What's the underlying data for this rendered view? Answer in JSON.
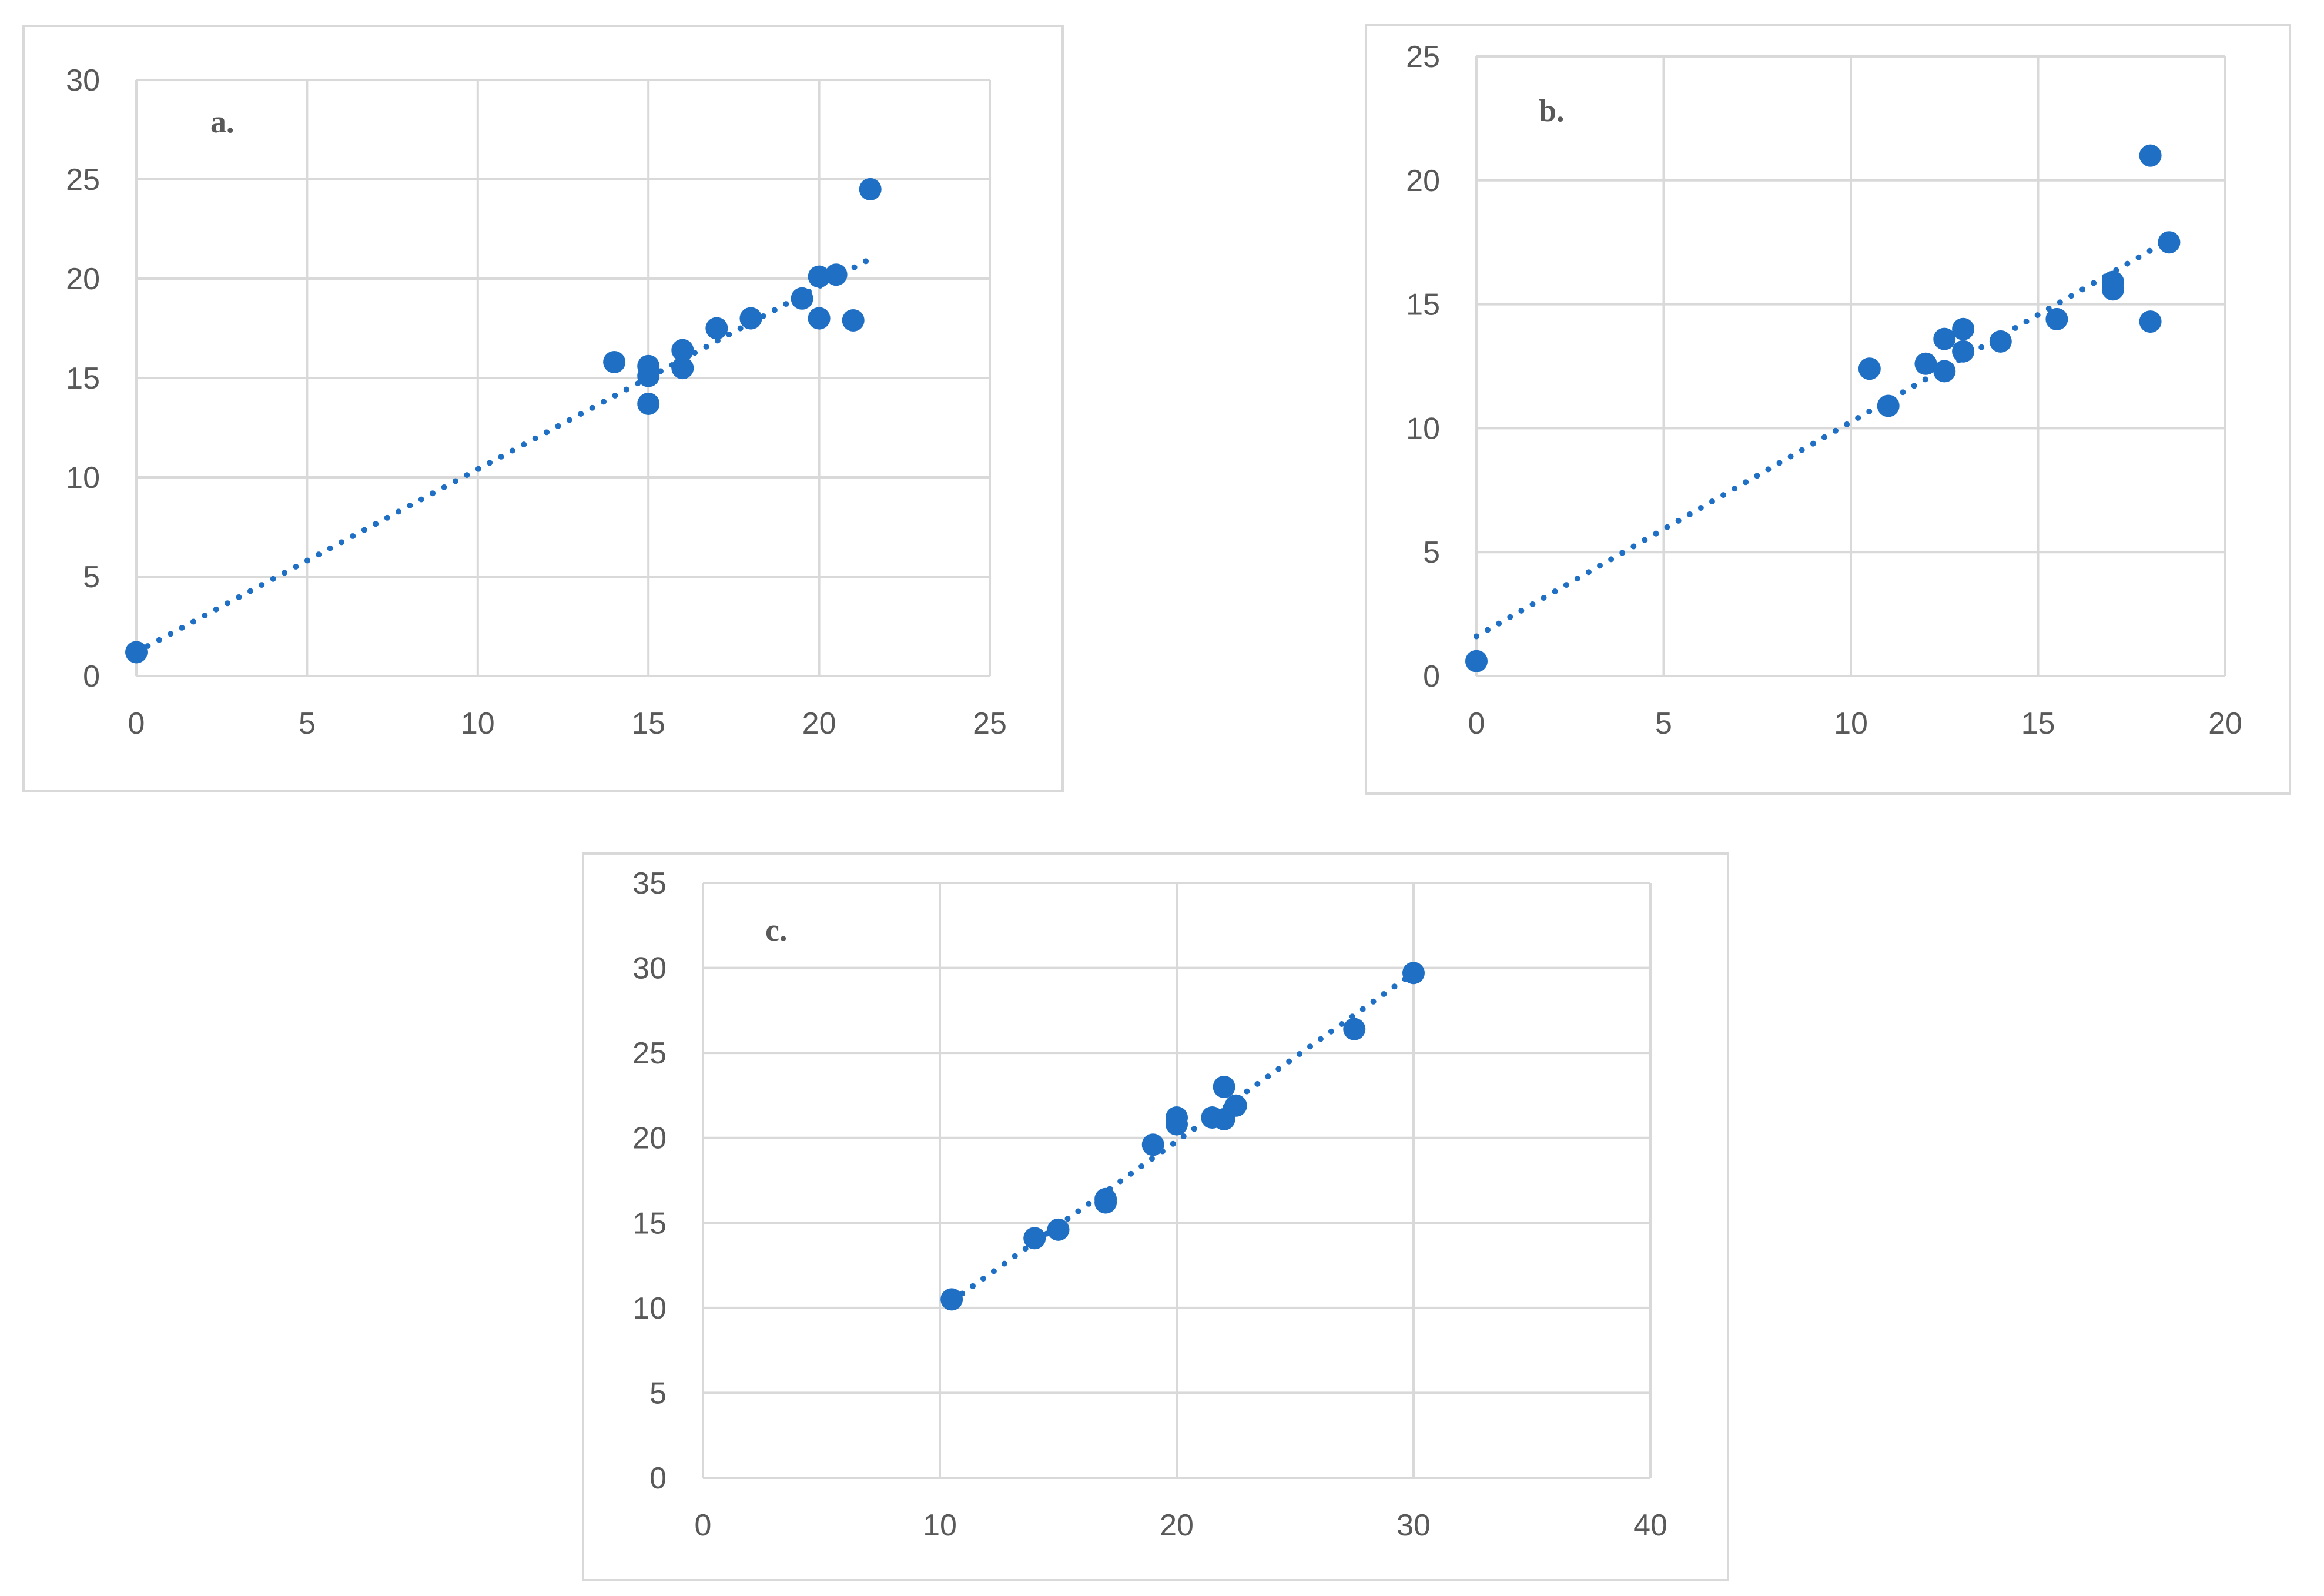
{
  "chart_data": [
    {
      "type": "scatter",
      "annotation": "a.",
      "xlim": [
        0,
        25
      ],
      "ylim": [
        0,
        30
      ],
      "x_ticks": [
        "0",
        "5",
        "10",
        "15",
        "20",
        "25"
      ],
      "y_ticks": [
        "0",
        "5",
        "10",
        "15",
        "20",
        "25",
        "30"
      ],
      "grid": true,
      "marker_color": "#1f6fc4",
      "points": [
        {
          "x": 0,
          "y": 1.2
        },
        {
          "x": 14,
          "y": 15.8
        },
        {
          "x": 15,
          "y": 15.6
        },
        {
          "x": 15,
          "y": 15.1
        },
        {
          "x": 15,
          "y": 13.7
        },
        {
          "x": 16,
          "y": 16.4
        },
        {
          "x": 16,
          "y": 15.5
        },
        {
          "x": 17,
          "y": 17.5
        },
        {
          "x": 18,
          "y": 18.0
        },
        {
          "x": 19.5,
          "y": 19.0
        },
        {
          "x": 20,
          "y": 20.1
        },
        {
          "x": 20,
          "y": 18.0
        },
        {
          "x": 20.5,
          "y": 20.2
        },
        {
          "x": 21,
          "y": 17.9
        },
        {
          "x": 21.5,
          "y": 24.5
        }
      ],
      "trendline": {
        "style": "dotted",
        "from": {
          "x": 0,
          "y": 1.2
        },
        "to": {
          "x": 21.5,
          "y": 21.0
        }
      }
    },
    {
      "type": "scatter",
      "annotation": "b.",
      "xlim": [
        0,
        20
      ],
      "ylim": [
        0,
        25
      ],
      "x_ticks": [
        "0",
        "5",
        "10",
        "15",
        "20"
      ],
      "y_ticks": [
        "0",
        "5",
        "10",
        "15",
        "20",
        "25"
      ],
      "grid": true,
      "marker_color": "#1f6fc4",
      "points": [
        {
          "x": 0,
          "y": 0.6
        },
        {
          "x": 10.5,
          "y": 12.4
        },
        {
          "x": 11,
          "y": 10.9
        },
        {
          "x": 12,
          "y": 12.6
        },
        {
          "x": 12.5,
          "y": 13.6
        },
        {
          "x": 12.5,
          "y": 12.3
        },
        {
          "x": 13,
          "y": 14.0
        },
        {
          "x": 13,
          "y": 13.1
        },
        {
          "x": 14,
          "y": 13.5
        },
        {
          "x": 15.5,
          "y": 14.4
        },
        {
          "x": 17,
          "y": 15.9
        },
        {
          "x": 17,
          "y": 15.6
        },
        {
          "x": 18,
          "y": 21.0
        },
        {
          "x": 18,
          "y": 14.3
        },
        {
          "x": 18.5,
          "y": 17.5
        }
      ],
      "trendline": {
        "style": "dotted",
        "from": {
          "x": 0,
          "y": 1.6
        },
        "to": {
          "x": 18.5,
          "y": 17.6
        }
      }
    },
    {
      "type": "scatter",
      "annotation": "c.",
      "xlim": [
        0,
        40
      ],
      "ylim": [
        0,
        35
      ],
      "x_ticks": [
        "0",
        "10",
        "20",
        "30",
        "40"
      ],
      "y_ticks": [
        "0",
        "5",
        "10",
        "15",
        "20",
        "25",
        "30",
        "35"
      ],
      "grid": true,
      "marker_color": "#1f6fc4",
      "points": [
        {
          "x": 10.5,
          "y": 10.5
        },
        {
          "x": 14,
          "y": 14.1
        },
        {
          "x": 15,
          "y": 14.6
        },
        {
          "x": 17,
          "y": 16.4
        },
        {
          "x": 17,
          "y": 16.2
        },
        {
          "x": 19,
          "y": 19.6
        },
        {
          "x": 20,
          "y": 21.2
        },
        {
          "x": 20,
          "y": 20.8
        },
        {
          "x": 21.5,
          "y": 21.2
        },
        {
          "x": 22,
          "y": 23.0
        },
        {
          "x": 22,
          "y": 21.1
        },
        {
          "x": 22.5,
          "y": 21.9
        },
        {
          "x": 27.5,
          "y": 26.4
        },
        {
          "x": 30,
          "y": 29.7
        }
      ],
      "trendline": {
        "style": "dotted",
        "from": {
          "x": 10.5,
          "y": 10.4
        },
        "to": {
          "x": 30,
          "y": 29.7
        }
      }
    }
  ]
}
